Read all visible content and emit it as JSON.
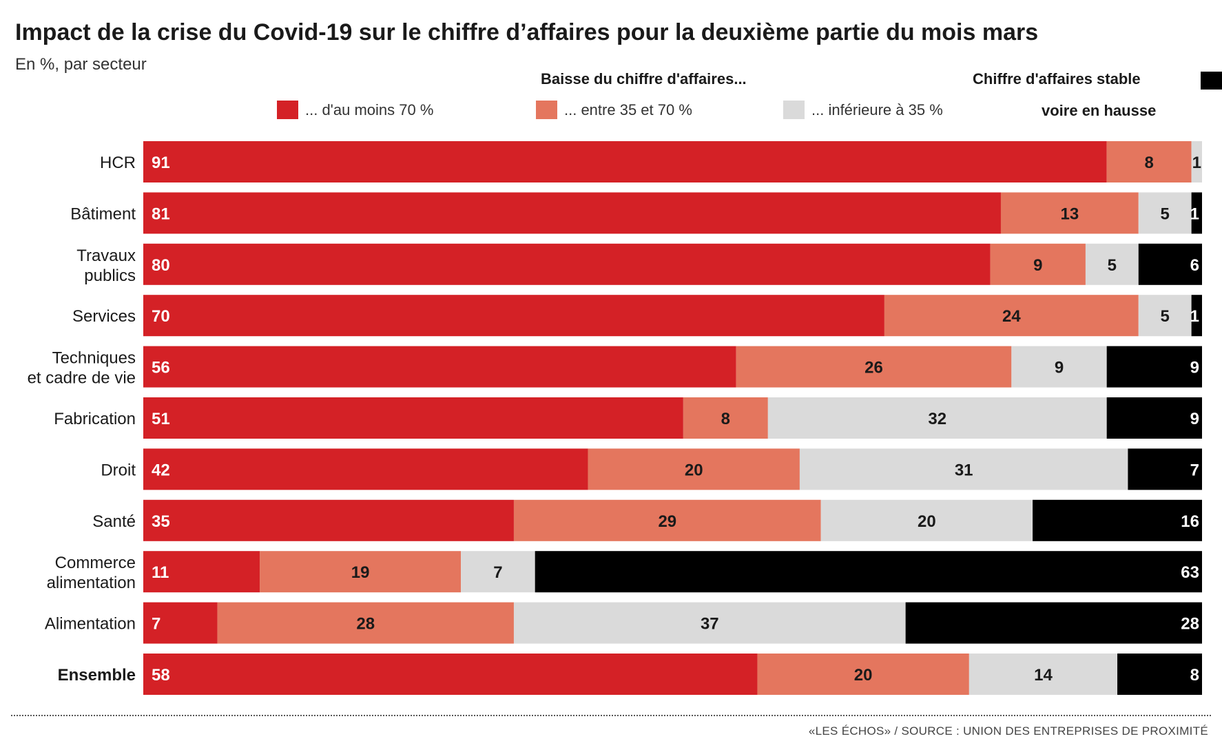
{
  "header": {
    "title": "Impact de la crise du Covid-19 sur le chiffre d’affaires pour la deuxième partie du mois mars",
    "subtitle": "En %, par secteur"
  },
  "legend": {
    "baisse_heading": "Baisse du chiffre d'affaires...",
    "stable_line1": "Chiffre d'affaires stable",
    "stable_line2": "voire en hausse",
    "items": [
      {
        "label": "... d'au moins 70 %",
        "color": "#d42126"
      },
      {
        "label": "... entre 35 et 70 %",
        "color": "#e4765e"
      },
      {
        "label": "... inférieure à 35 %",
        "color": "#dadada"
      }
    ],
    "stable_color": "#000000"
  },
  "footer": {
    "source": "«LES ÉCHOS» / SOURCE : UNION DES ENTREPRISES DE PROXIMITÉ"
  },
  "chart_data": {
    "type": "bar",
    "orientation": "horizontal",
    "stacked": true,
    "categories": [
      [
        "HCR"
      ],
      [
        "Bâtiment"
      ],
      [
        "Travaux",
        "publics"
      ],
      [
        "Services"
      ],
      [
        "Techniques",
        "et cadre de vie"
      ],
      [
        "Fabrication"
      ],
      [
        "Droit"
      ],
      [
        "Santé"
      ],
      [
        "Commerce",
        "alimentation"
      ],
      [
        "Alimentation"
      ],
      [
        "Ensemble"
      ]
    ],
    "bold_categories": [
      "Ensemble"
    ],
    "series": [
      {
        "name": "... d'au moins 70 %",
        "color": "#d42126",
        "label_color": "#ffffff",
        "values": [
          91,
          81,
          80,
          70,
          56,
          51,
          42,
          35,
          11,
          7,
          58
        ]
      },
      {
        "name": "... entre 35 et 70 %",
        "color": "#e4765e",
        "label_color": "#1a1a1a",
        "values": [
          8,
          13,
          9,
          24,
          26,
          8,
          20,
          29,
          19,
          28,
          20
        ]
      },
      {
        "name": "... inférieure à 35 %",
        "color": "#dadada",
        "label_color": "#1a1a1a",
        "values": [
          1,
          5,
          5,
          5,
          9,
          32,
          31,
          20,
          7,
          37,
          14
        ]
      },
      {
        "name": "Chiffre d'affaires stable voire en hausse",
        "color": "#000000",
        "label_color": "#ffffff",
        "values": [
          0,
          1,
          6,
          1,
          9,
          9,
          7,
          16,
          63,
          28,
          8
        ]
      }
    ],
    "xlim": [
      0,
      100
    ],
    "unit": "%",
    "grid": false,
    "legend_position": "top"
  }
}
